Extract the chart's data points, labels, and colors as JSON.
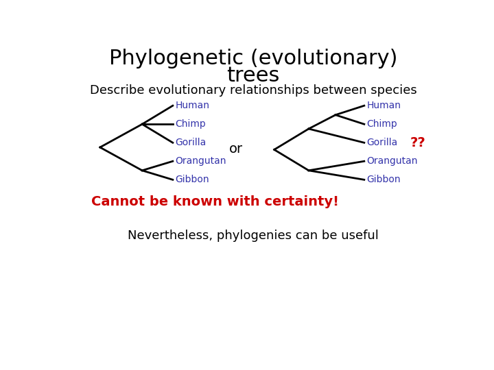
{
  "title_line1": "Phylogenetic (evolutionary)",
  "title_line2": "trees",
  "subtitle": "Describe evolutionary relationships between species",
  "or_text": "or",
  "cannot_text": "Cannot be known with certainty!",
  "nevertheless_text": "Nevertheless, phylogenies can be useful",
  "species": [
    "Human",
    "Chimp",
    "Gorilla",
    "Orangutan",
    "Gibbon"
  ],
  "qq_text": "??",
  "bg_color": "#ffffff",
  "line_color": "#000000",
  "species_color": "#3333aa",
  "cannot_color": "#cc0000",
  "qq_color": "#cc0000",
  "title_color": "#000000",
  "subtitle_color": "#000000",
  "nevertheless_color": "#000000",
  "title_fontsize": 22,
  "subtitle_fontsize": 13,
  "species_fontsize": 10,
  "or_fontsize": 14,
  "cannot_fontsize": 14,
  "nevertheless_fontsize": 13,
  "qq_fontsize": 14
}
